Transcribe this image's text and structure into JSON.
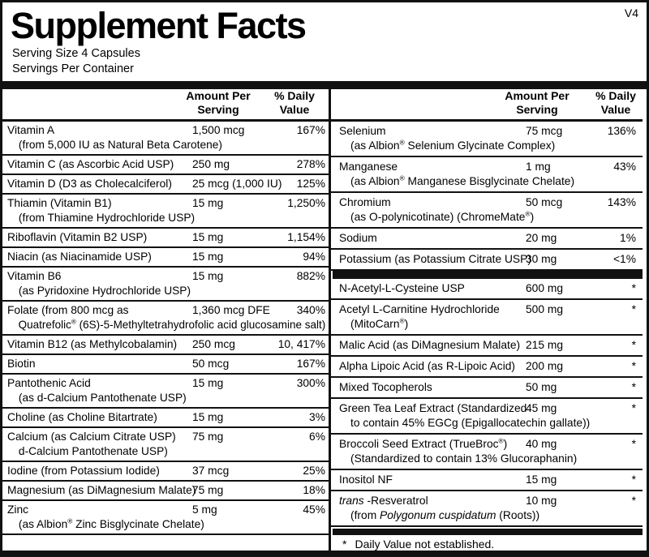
{
  "version": "V4",
  "title": "Supplement Facts",
  "serving_size": "Serving Size  4 Capsules",
  "servings_per_container": "Servings Per Container",
  "col_headers": {
    "amount": "Amount Per\nServing",
    "dv": "% Daily\nValue"
  },
  "left_rows": [
    {
      "name": "Vitamin A",
      "amount": "1,500 mcg",
      "dv": "167%",
      "sub": "(from 5,000 IU as Natural Beta Carotene)"
    },
    {
      "name": "Vitamin C (as Ascorbic Acid USP)",
      "amount": "250 mg",
      "dv": "278%"
    },
    {
      "name": "Vitamin D (D3 as Cholecalciferol)",
      "amount": "25 mcg (1,000 IU)",
      "dv": "125%"
    },
    {
      "name": "Thiamin (Vitamin B1)",
      "amount": "15 mg",
      "dv": "1,250%",
      "sub": "(from Thiamine Hydrochloride USP)"
    },
    {
      "name": "Riboflavin (Vitamin B2 USP)",
      "amount": "15 mg",
      "dv": "1,154%"
    },
    {
      "name": "Niacin (as Niacinamide USP)",
      "amount": "15 mg",
      "dv": "94%"
    },
    {
      "name": "Vitamin B6",
      "amount": "15 mg",
      "dv": "882%",
      "sub": "(as Pyridoxine Hydrochloride USP)"
    },
    {
      "name": "Folate (from 800 mcg as",
      "amount": "1,360 mcg DFE",
      "dv": "340%",
      "sub": "Quatrefolic® (6S)-5-Methyltetrahydrofolic acid glucosamine salt)"
    },
    {
      "name": "Vitamin B12 (as Methylcobalamin)",
      "amount": "250 mcg",
      "dv": "10, 417%"
    },
    {
      "name": "Biotin",
      "amount": "50 mcg",
      "dv": "167%"
    },
    {
      "name": "Pantothenic Acid",
      "amount": "15 mg",
      "dv": "300%",
      "sub": "(as d-Calcium Pantothenate USP)"
    },
    {
      "name": "Choline (as Choline Bitartrate)",
      "amount": "15 mg",
      "dv": "3%"
    },
    {
      "name": "Calcium (as Calcium Citrate USP)",
      "amount": "75 mg",
      "dv": "6%",
      "sub": "d-Calcium Pantothenate USP)"
    },
    {
      "name": "Iodine (from Potassium Iodide)",
      "amount": "37 mcg",
      "dv": "25%"
    },
    {
      "name": "Magnesium (as DiMagnesium Malate)",
      "amount": "75 mg",
      "dv": "18%"
    },
    {
      "name": "Zinc",
      "amount": "5 mg",
      "dv": "45%",
      "sub": "(as Albion® Zinc Bisglycinate Chelate)"
    }
  ],
  "right_rows_top": [
    {
      "name": "Selenium",
      "amount": "75 mcg",
      "dv": "136%",
      "sub": "(as Albion® Selenium Glycinate Complex)"
    },
    {
      "name": "Manganese",
      "amount": "1 mg",
      "dv": "43%",
      "sub": "(as Albion® Manganese Bisglycinate Chelate)"
    },
    {
      "name": "Chromium",
      "amount": "50 mcg",
      "dv": "143%",
      "sub": "(as O-polynicotinate) (ChromeMate®)"
    },
    {
      "name": "Sodium",
      "amount": "20 mg",
      "dv": "1%"
    },
    {
      "name": "Potassium (as Potassium Citrate USP)",
      "amount": "30 mg",
      "dv": "<1%"
    }
  ],
  "right_rows_bottom": [
    {
      "name": "N-Acetyl-L-Cysteine USP",
      "amount": "600 mg",
      "dv": "*"
    },
    {
      "name": "Acetyl L-Carnitine Hydrochloride",
      "amount": "500 mg",
      "dv": "*",
      "sub": "(MitoCarn®)"
    },
    {
      "name": "Malic Acid (as DiMagnesium Malate)",
      "amount": "215 mg",
      "dv": "*"
    },
    {
      "name": "Alpha Lipoic Acid (as R-Lipoic Acid)",
      "amount": "200 mg",
      "dv": "*"
    },
    {
      "name": "Mixed Tocopherols",
      "amount": "50 mg",
      "dv": "*"
    },
    {
      "name": "Green Tea Leaf Extract (Standardized",
      "amount": "45 mg",
      "dv": "*",
      "sub": "to contain 45% EGCg (Epigallocatechin gallate))"
    },
    {
      "name": "Broccoli Seed Extract (TrueBroc®)",
      "amount": "40 mg",
      "dv": "*",
      "sub": "(Standardized to contain 13% Glucoraphanin)"
    },
    {
      "name": "Inositol NF",
      "amount": "15 mg",
      "dv": "*"
    },
    {
      "name": "_trans_ -Resveratrol",
      "amount": "10 mg",
      "dv": "*",
      "sub": "(from _Polygonum cuspidatum_ (Roots))"
    }
  ],
  "footnote": {
    "symbol": "*",
    "text": "Daily Value not established."
  }
}
